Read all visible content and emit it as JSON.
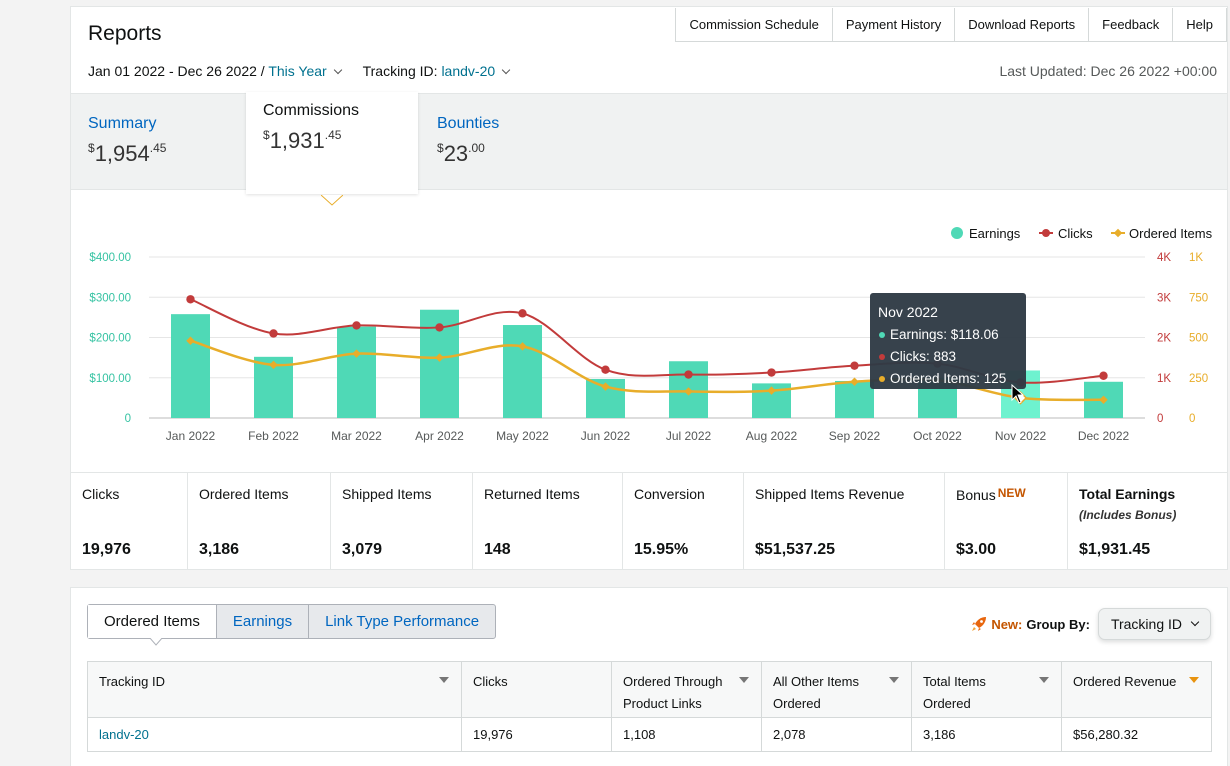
{
  "header": {
    "title": "Reports",
    "links": [
      "Commission Schedule",
      "Payment History",
      "Download Reports",
      "Feedback",
      "Help"
    ],
    "date_range": "Jan 01 2022 - Dec 26 2022 /",
    "period": "This Year",
    "tracking_label": "Tracking ID:",
    "tracking_id": "landv-20",
    "last_updated": "Last Updated: Dec 26 2022 +00:00"
  },
  "summary_tabs": [
    {
      "label": "Summary",
      "dollars": "1,954",
      "cents": ".45"
    },
    {
      "label": "Commissions",
      "dollars": "1,931",
      "cents": ".45"
    },
    {
      "label": "Bounties",
      "dollars": "23",
      "cents": ".00"
    }
  ],
  "currency_symbol": "$",
  "chart_data": {
    "type": "bar",
    "categories": [
      "Jan 2022",
      "Feb 2022",
      "Mar 2022",
      "Apr 2022",
      "May 2022",
      "Jun 2022",
      "Jul 2022",
      "Aug 2022",
      "Sep 2022",
      "Oct 2022",
      "Nov 2022",
      "Dec 2022"
    ],
    "series": [
      {
        "name": "Earnings",
        "type": "bar",
        "axis": "left",
        "color": "#4fd9b6",
        "values": [
          258,
          152,
          227,
          269,
          231,
          97,
          141,
          86,
          92,
          100,
          118.06,
          90
        ]
      },
      {
        "name": "Clicks",
        "type": "line",
        "axis": "right1",
        "color": "#c23b3b",
        "values": [
          2950,
          2100,
          2300,
          2250,
          2600,
          1200,
          1080,
          1130,
          1300,
          1350,
          883,
          1050
        ]
      },
      {
        "name": "Ordered Items",
        "type": "line",
        "axis": "right2",
        "color": "#e8ad2a",
        "values": [
          480,
          330,
          400,
          375,
          445,
          195,
          165,
          170,
          225,
          235,
          125,
          113
        ]
      }
    ],
    "y_left": {
      "ticks": [
        "0",
        "$100.00",
        "$200.00",
        "$300.00",
        "$400.00"
      ],
      "range": [
        0,
        400
      ],
      "color": "#36c3a3"
    },
    "y_right1": {
      "ticks": [
        "0",
        "1K",
        "2K",
        "3K",
        "4K"
      ],
      "range": [
        0,
        4000
      ],
      "color": "#c23b3b"
    },
    "y_right2": {
      "ticks": [
        "0",
        "250",
        "500",
        "750",
        "1K"
      ],
      "range": [
        0,
        1000
      ],
      "color": "#e8ad2a"
    },
    "legend": [
      "Earnings",
      "Clicks",
      "Ordered Items"
    ],
    "legend_position": "top-right",
    "grid": true,
    "highlight_index": 10,
    "tooltip": {
      "title": "Nov 2022",
      "lines": [
        "Earnings: $118.06",
        "Clicks: 883",
        "Ordered Items: 125"
      ]
    }
  },
  "metrics": [
    {
      "label": "Clicks",
      "value": "19,976"
    },
    {
      "label": "Ordered Items",
      "value": "3,186"
    },
    {
      "label": "Shipped Items",
      "value": "3,079"
    },
    {
      "label": "Returned Items",
      "value": "148"
    },
    {
      "label": "Conversion",
      "value": "15.95%"
    },
    {
      "label": "Shipped Items Revenue",
      "value": "$51,537.25"
    },
    {
      "label": "Bonus",
      "badge": "NEW",
      "value": "$3.00"
    },
    {
      "label": "Total Earnings",
      "sublabel": "(Includes Bonus)",
      "value": "$1,931.45"
    }
  ],
  "bottom": {
    "tabs": [
      "Ordered Items",
      "Earnings",
      "Link Type Performance"
    ],
    "new_label": "New:",
    "group_by_label": "Group By:",
    "group_by_value": "Tracking ID",
    "table": {
      "headers": [
        "Tracking ID",
        "Clicks",
        "Ordered Through Product Links",
        "All Other Items Ordered",
        "Total Items Ordered",
        "Ordered Revenue"
      ],
      "rows": [
        [
          "landv-20",
          "19,976",
          "1,108",
          "2,078",
          "3,186",
          "$56,280.32"
        ]
      ]
    }
  }
}
